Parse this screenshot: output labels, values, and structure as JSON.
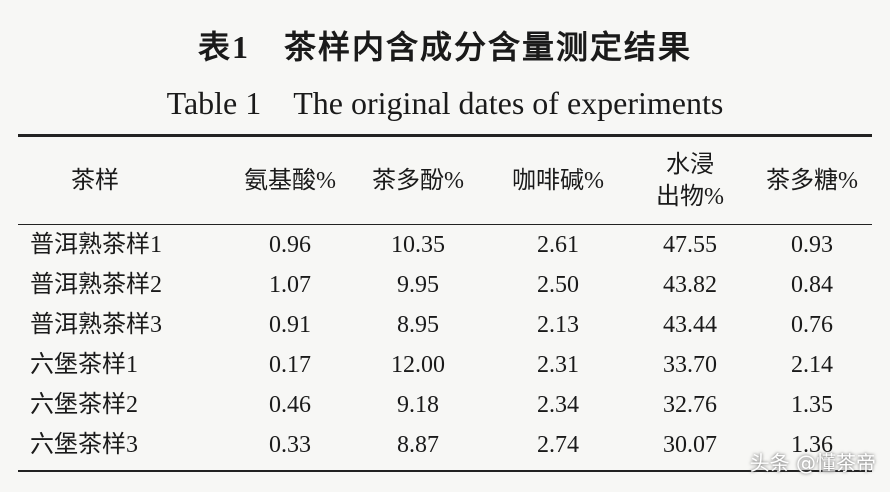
{
  "header": {
    "title_zh": "表1　茶样内含成分含量测定结果",
    "title_en": "Table 1　The original dates of experiments"
  },
  "table": {
    "columns": [
      "茶样",
      "氨基酸%",
      "茶多酚%",
      "咖啡碱%",
      [
        "水浸",
        "出物%"
      ],
      "茶多糖%"
    ],
    "rows": [
      [
        "普洱熟茶样1",
        "0.96",
        "10.35",
        "2.61",
        "47.55",
        "0.93"
      ],
      [
        "普洱熟茶样2",
        "1.07",
        "9.95",
        "2.50",
        "43.82",
        "0.84"
      ],
      [
        "普洱熟茶样3",
        "0.91",
        "8.95",
        "2.13",
        "43.44",
        "0.76"
      ],
      [
        "六堡茶样1",
        "0.17",
        "12.00",
        "2.31",
        "33.70",
        "2.14"
      ],
      [
        "六堡茶样2",
        "0.46",
        "9.18",
        "2.34",
        "32.76",
        "1.35"
      ],
      [
        "六堡茶样3",
        "0.33",
        "8.87",
        "2.74",
        "30.07",
        "1.36"
      ]
    ]
  },
  "watermark": "头条 @懂茶帝"
}
